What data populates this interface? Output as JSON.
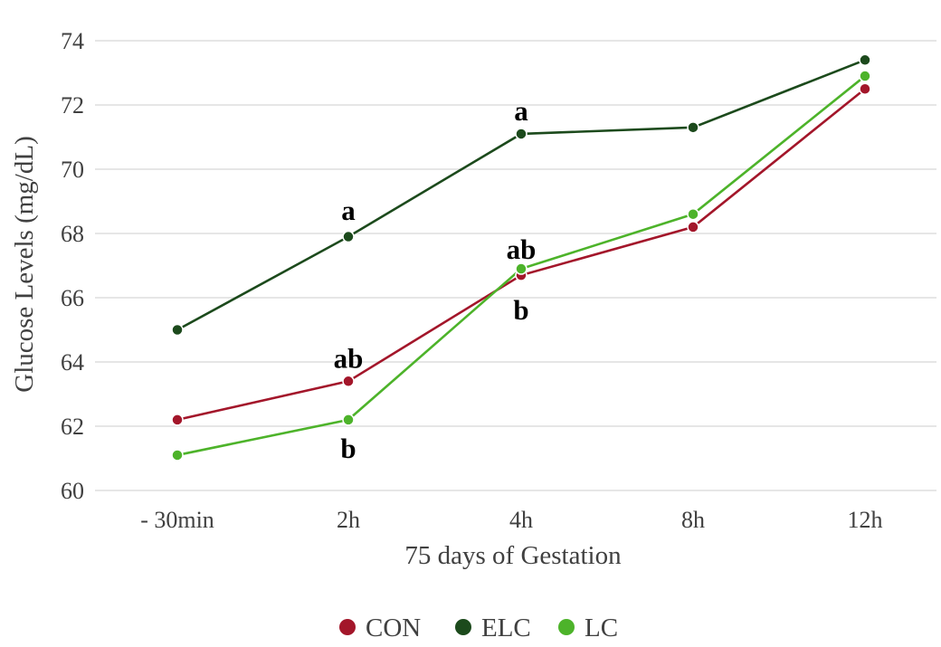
{
  "chart_data": {
    "type": "line",
    "xlabel": "75 days of Gestation",
    "ylabel": "Glucose Levels (mg/dL)",
    "categories": [
      "- 30min",
      "2h",
      "4h",
      "8h",
      "12h"
    ],
    "ylim": [
      60,
      74
    ],
    "yticks": [
      60,
      62,
      64,
      66,
      68,
      70,
      72,
      74
    ],
    "grid": true,
    "legend_position": "bottom-center",
    "series": [
      {
        "name": "CON",
        "color": "#a3162a",
        "values": [
          62.2,
          63.4,
          66.7,
          68.2,
          72.5
        ]
      },
      {
        "name": "ELC",
        "color": "#1c4a1c",
        "values": [
          65.0,
          67.9,
          71.1,
          71.3,
          73.4
        ]
      },
      {
        "name": "LC",
        "color": "#4db32a",
        "values": [
          61.1,
          62.2,
          66.9,
          68.6,
          72.9
        ]
      }
    ],
    "annotations": [
      {
        "text": "a",
        "category": "2h",
        "y": 68.7
      },
      {
        "text": "ab",
        "category": "2h",
        "y": 64.1
      },
      {
        "text": "b",
        "category": "2h",
        "y": 61.3
      },
      {
        "text": "a",
        "category": "4h",
        "y": 71.8
      },
      {
        "text": "ab",
        "category": "4h",
        "y": 67.5
      },
      {
        "text": "b",
        "category": "4h",
        "y": 65.6
      }
    ]
  }
}
